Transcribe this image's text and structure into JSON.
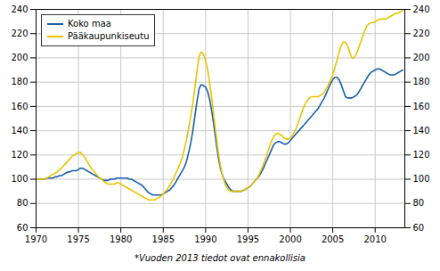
{
  "chart_data": {
    "type": "line",
    "footnote": "*Vuoden 2013 tiedot ovat ennakollisia",
    "x": [
      1970.0,
      1970.25,
      1970.5,
      1970.75,
      1971.0,
      1971.25,
      1971.5,
      1971.75,
      1972.0,
      1972.25,
      1972.5,
      1972.75,
      1973.0,
      1973.25,
      1973.5,
      1973.75,
      1974.0,
      1974.25,
      1974.5,
      1974.75,
      1975.0,
      1975.25,
      1975.5,
      1975.75,
      1976.0,
      1976.25,
      1976.5,
      1976.75,
      1977.0,
      1977.25,
      1977.5,
      1977.75,
      1978.0,
      1978.25,
      1978.5,
      1978.75,
      1979.0,
      1979.25,
      1979.5,
      1979.75,
      1980.0,
      1980.25,
      1980.5,
      1980.75,
      1981.0,
      1981.25,
      1981.5,
      1981.75,
      1982.0,
      1982.25,
      1982.5,
      1982.75,
      1983.0,
      1983.25,
      1983.5,
      1983.75,
      1984.0,
      1984.25,
      1984.5,
      1984.75,
      1985.0,
      1985.25,
      1985.5,
      1985.75,
      1986.0,
      1986.25,
      1986.5,
      1986.75,
      1987.0,
      1987.25,
      1987.5,
      1987.75,
      1988.0,
      1988.25,
      1988.5,
      1988.75,
      1989.0,
      1989.25,
      1989.5,
      1989.75,
      1990.0,
      1990.25,
      1990.5,
      1990.75,
      1991.0,
      1991.25,
      1991.5,
      1991.75,
      1992.0,
      1992.25,
      1992.5,
      1992.75,
      1993.0,
      1993.25,
      1993.5,
      1993.75,
      1994.0,
      1994.25,
      1994.5,
      1994.75,
      1995.0,
      1995.25,
      1995.5,
      1995.75,
      1996.0,
      1996.25,
      1996.5,
      1996.75,
      1997.0,
      1997.25,
      1997.5,
      1997.75,
      1998.0,
      1998.25,
      1998.5,
      1998.75,
      1999.0,
      1999.25,
      1999.5,
      1999.75,
      2000.0,
      2000.25,
      2000.5,
      2000.75,
      2001.0,
      2001.25,
      2001.5,
      2001.75,
      2002.0,
      2002.25,
      2002.5,
      2002.75,
      2003.0,
      2003.25,
      2003.5,
      2003.75,
      2004.0,
      2004.25,
      2004.5,
      2004.75,
      2005.0,
      2005.25,
      2005.5,
      2005.75,
      2006.0,
      2006.25,
      2006.5,
      2006.75,
      2007.0,
      2007.25,
      2007.5,
      2007.75,
      2008.0,
      2008.25,
      2008.5,
      2008.75,
      2009.0,
      2009.25,
      2009.5,
      2009.75,
      2010.0,
      2010.25,
      2010.5,
      2010.75,
      2011.0,
      2011.25,
      2011.5,
      2011.75,
      2012.0,
      2012.25,
      2012.5,
      2012.75,
      2013.0,
      2013.25
    ],
    "series": [
      {
        "name": "Koko maa",
        "color": "#1a5fa8",
        "values": [
          100,
          100,
          100,
          100,
          100,
          101,
          101,
          101,
          101,
          102,
          102,
          103,
          103,
          104,
          105,
          106,
          106,
          107,
          107,
          107,
          108,
          109,
          109,
          108,
          107,
          106,
          105,
          104,
          103,
          102,
          101,
          100,
          99,
          99,
          99,
          100,
          100,
          100,
          101,
          101,
          101,
          101,
          101,
          101,
          100,
          100,
          99,
          98,
          97,
          96,
          95,
          93,
          91,
          89,
          88,
          87,
          87,
          87,
          87,
          87,
          88,
          89,
          90,
          91,
          93,
          95,
          98,
          101,
          104,
          107,
          110,
          115,
          122,
          130,
          140,
          153,
          165,
          175,
          178,
          177,
          176,
          172,
          165,
          155,
          143,
          130,
          118,
          109,
          103,
          99,
          96,
          93,
          91,
          90,
          90,
          90,
          90,
          90,
          91,
          92,
          93,
          94,
          96,
          98,
          100,
          102,
          105,
          108,
          112,
          116,
          120,
          124,
          128,
          130,
          131,
          131,
          130,
          129,
          129,
          130,
          132,
          134,
          136,
          138,
          140,
          142,
          144,
          146,
          148,
          150,
          152,
          154,
          156,
          158,
          161,
          164,
          167,
          171,
          175,
          179,
          182,
          184,
          184,
          182,
          178,
          173,
          168,
          167,
          167,
          167,
          168,
          169,
          171,
          174,
          177,
          180,
          183,
          186,
          188,
          189,
          190,
          191,
          191,
          190,
          189,
          188,
          187,
          186,
          186,
          186,
          187,
          188,
          189,
          190
        ]
      },
      {
        "name": "Pääkaupunkiseutu",
        "color": "#e8c400",
        "values": [
          100,
          100,
          100,
          100,
          100,
          101,
          102,
          103,
          104,
          105,
          106,
          108,
          109,
          111,
          113,
          115,
          117,
          119,
          120,
          121,
          122,
          122,
          120,
          118,
          115,
          112,
          109,
          107,
          105,
          103,
          101,
          100,
          98,
          97,
          96,
          96,
          96,
          96,
          97,
          97,
          96,
          95,
          94,
          93,
          92,
          91,
          90,
          89,
          88,
          87,
          86,
          85,
          84,
          83,
          83,
          83,
          83,
          84,
          85,
          86,
          88,
          90,
          92,
          95,
          98,
          101,
          105,
          109,
          113,
          118,
          125,
          133,
          142,
          152,
          163,
          176,
          190,
          202,
          205,
          203,
          198,
          190,
          178,
          165,
          150,
          136,
          122,
          111,
          103,
          97,
          93,
          91,
          90,
          90,
          90,
          90,
          90,
          90,
          91,
          92,
          93,
          94,
          96,
          98,
          100,
          103,
          107,
          111,
          116,
          121,
          126,
          131,
          135,
          137,
          138,
          137,
          136,
          134,
          133,
          133,
          134,
          136,
          139,
          143,
          148,
          153,
          158,
          162,
          165,
          167,
          168,
          168,
          168,
          168,
          169,
          170,
          172,
          175,
          178,
          182,
          186,
          192,
          198,
          205,
          210,
          213,
          213,
          210,
          205,
          200,
          200,
          203,
          207,
          212,
          217,
          222,
          226,
          228,
          229,
          229,
          230,
          231,
          232,
          232,
          232,
          232,
          233,
          234,
          235,
          236,
          237,
          237,
          238,
          239
        ]
      }
    ],
    "xlim": [
      1970,
      2013.5
    ],
    "xticks": [
      1970,
      1975,
      1980,
      1985,
      1990,
      1995,
      2000,
      2005,
      2010
    ],
    "ylim": [
      60,
      240
    ],
    "yticks": [
      60,
      80,
      100,
      120,
      140,
      160,
      180,
      200,
      220,
      240
    ],
    "grid": true,
    "legend": "upper left"
  }
}
